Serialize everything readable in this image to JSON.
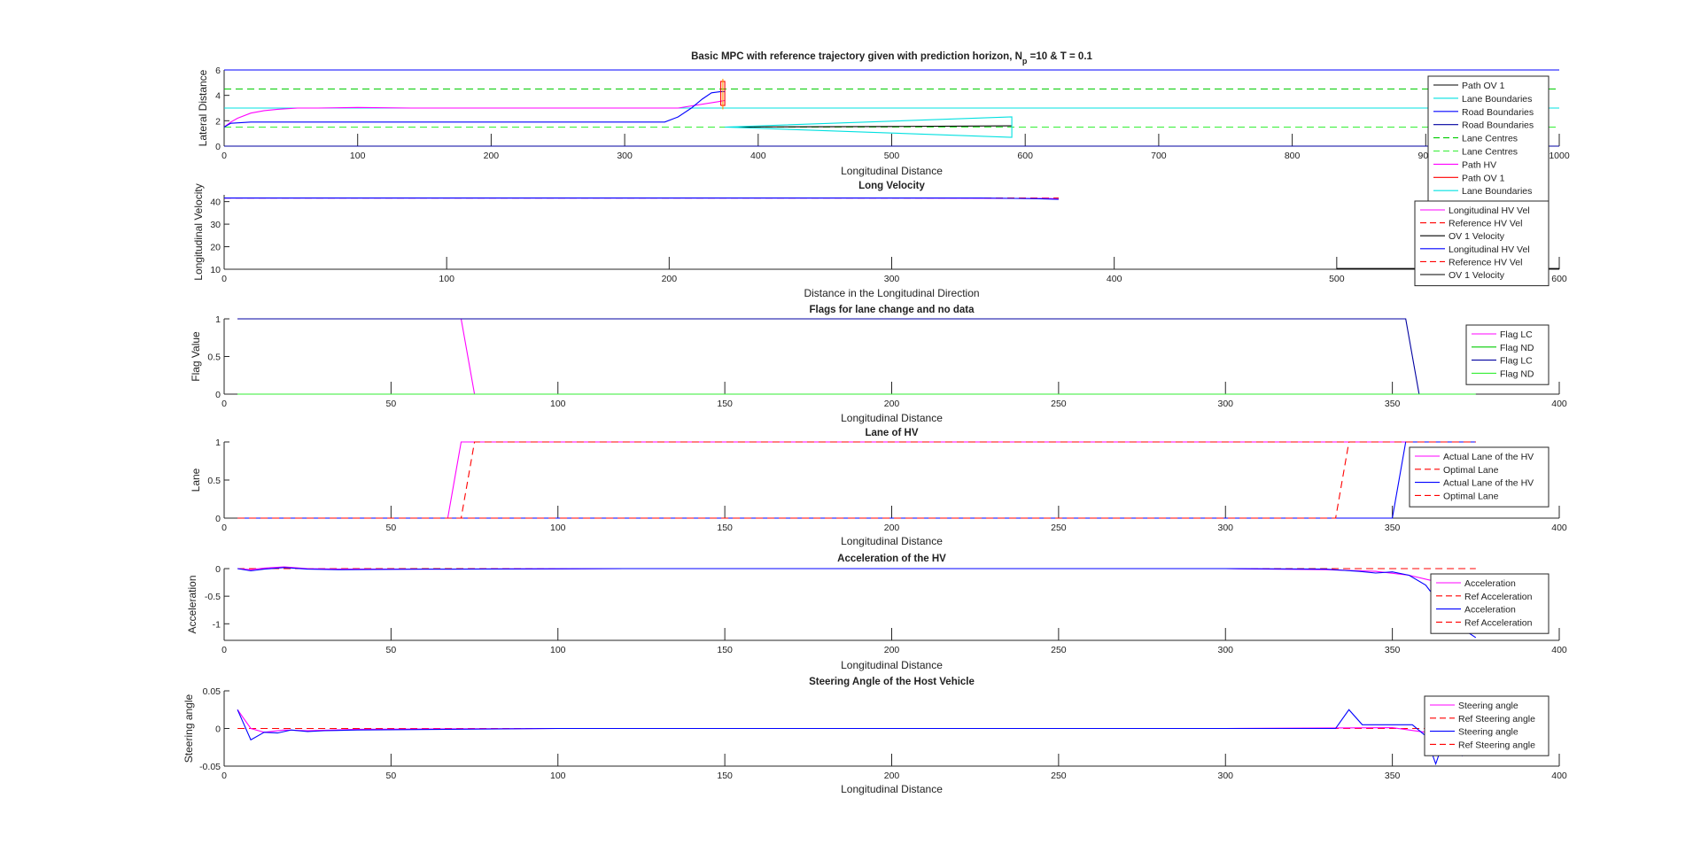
{
  "figure": {
    "background": "#ffffff",
    "colors": {
      "magenta": "#ff00ff",
      "red": "#ff0000",
      "black": "#000000",
      "blue": "#0000ff",
      "darkblue": "#0000a0",
      "cyan": "#00e0e0",
      "green": "#00cc00",
      "lightgreen": "#33ee33",
      "orange": "#ff9900"
    }
  },
  "chart_data": [
    {
      "type": "line",
      "title_main": "Basic MPC with reference trajectory given with prediction horizon, N",
      "title_sub": "p",
      "title_tail": " =10 & T = 0.1",
      "xlabel": "Longitudinal Distance",
      "ylabel": "Lateral Distance",
      "xlim": [
        0,
        1000
      ],
      "ylim": [
        0,
        6
      ],
      "xticks": [
        0,
        100,
        200,
        300,
        400,
        500,
        600,
        700,
        800,
        900,
        1000
      ],
      "yticks": [
        0,
        2,
        4,
        6
      ],
      "xtick_labels": [
        "0",
        "100",
        "200",
        "300",
        "400",
        "500",
        "600",
        "700",
        "800",
        "900",
        "1000"
      ],
      "ytick_labels": [
        "0",
        "2",
        "4",
        "6"
      ],
      "legend": [
        "Path OV 1",
        "Lane Boundaries",
        "Road Boundaries",
        "Road Boundaries",
        "Lane Centres",
        "Lane Centres",
        "Path HV",
        "Path OV 1",
        "Lane Boundaries"
      ],
      "legend_placement": "right",
      "series": [
        {
          "name": "Road Boundaries",
          "color": "blue",
          "x": [
            0,
            1000
          ],
          "y": [
            6,
            6
          ]
        },
        {
          "name": "Road Boundaries",
          "color": "darkblue",
          "x": [
            0,
            1000
          ],
          "y": [
            0,
            0
          ]
        },
        {
          "name": "Lane Boundaries",
          "color": "cyan",
          "x": [
            0,
            1000
          ],
          "y": [
            3,
            3
          ]
        },
        {
          "name": "Lane Centres",
          "color": "green",
          "dash": true,
          "x": [
            0,
            1000
          ],
          "y": [
            4.5,
            4.5
          ]
        },
        {
          "name": "Lane Centres",
          "color": "lightgreen",
          "dash": true,
          "x": [
            0,
            1000
          ],
          "y": [
            1.5,
            1.5
          ]
        },
        {
          "name": "Path HV",
          "color": "magenta",
          "x": [
            0,
            5,
            10,
            20,
            30,
            40,
            55,
            70,
            100,
            140,
            180,
            240,
            300,
            340,
            370,
            375
          ],
          "y": [
            1.5,
            1.9,
            2.2,
            2.6,
            2.8,
            2.9,
            3.0,
            3.0,
            3.05,
            3.0,
            3.0,
            3.0,
            3.0,
            3.0,
            3.5,
            3.6
          ]
        },
        {
          "name": "Path HV",
          "color": "blue",
          "x": [
            0,
            5,
            20,
            40,
            80,
            150,
            250,
            330,
            340,
            350,
            358,
            365,
            372,
            375
          ],
          "y": [
            1.5,
            1.8,
            1.9,
            1.9,
            1.9,
            1.9,
            1.9,
            1.9,
            2.3,
            3.0,
            3.7,
            4.2,
            4.3,
            4.3
          ]
        },
        {
          "name": "Path OV 1",
          "color": "black",
          "x": [
            375,
            500,
            590
          ],
          "y": [
            1.5,
            1.55,
            1.6
          ]
        },
        {
          "name": "Lane Boundaries",
          "color": "cyan",
          "x": [
            375,
            590,
            590,
            375
          ],
          "y": [
            1.5,
            2.3,
            0.7,
            1.5
          ]
        },
        {
          "name": "Path OV 1",
          "color": "red",
          "x": [
            372,
            372,
            375,
            375,
            372
          ],
          "y": [
            3.2,
            5.1,
            5.1,
            3.2,
            3.2
          ]
        },
        {
          "name": "Path OV 1",
          "color": "orange",
          "x": [
            373.5,
            373.5
          ],
          "y": [
            2.9,
            5.3
          ]
        }
      ]
    },
    {
      "type": "line",
      "title": "Long Velocity",
      "xlabel": "Distance in the Longitudinal Direction",
      "ylabel": "Longitudinal Velocity",
      "xlim": [
        0,
        600
      ],
      "ylim": [
        10,
        43
      ],
      "xticks": [
        0,
        100,
        200,
        300,
        400,
        500,
        600
      ],
      "yticks": [
        10,
        20,
        30,
        40
      ],
      "xtick_labels": [
        "0",
        "100",
        "200",
        "300",
        "400",
        "500",
        "600"
      ],
      "ytick_labels": [
        "10",
        "20",
        "30",
        "40"
      ],
      "legend": [
        "Longitudinal HV Vel",
        "Reference HV Vel",
        "OV 1 Velocity",
        "Longitudinal HV Vel",
        "Reference HV Vel",
        "OV 1 Velocity"
      ],
      "legend_placement": "right",
      "series": [
        {
          "name": "Reference HV Vel",
          "color": "red",
          "dash": true,
          "x": [
            0,
            375
          ],
          "y": [
            41.6,
            41.6
          ]
        },
        {
          "name": "Longitudinal HV Vel",
          "color": "magenta",
          "x": [
            0,
            300,
            370,
            375
          ],
          "y": [
            41.6,
            41.6,
            41.4,
            41.2
          ]
        },
        {
          "name": "Longitudinal HV Vel",
          "color": "blue",
          "x": [
            0,
            340,
            365,
            375
          ],
          "y": [
            41.6,
            41.6,
            41.3,
            41.0
          ]
        },
        {
          "name": "OV 1 Velocity",
          "color": "black",
          "x": [
            500,
            600
          ],
          "y": [
            10.3,
            10.3
          ]
        }
      ]
    },
    {
      "type": "line",
      "title": "Flags for lane change and no data",
      "xlabel": "Longitudinal Distance",
      "ylabel": "Flag Value",
      "xlim": [
        0,
        400
      ],
      "ylim": [
        0,
        1
      ],
      "xticks": [
        0,
        50,
        100,
        150,
        200,
        250,
        300,
        350,
        400
      ],
      "yticks": [
        0,
        0.5,
        1
      ],
      "xtick_labels": [
        "0",
        "50",
        "100",
        "150",
        "200",
        "250",
        "300",
        "350",
        "400"
      ],
      "ytick_labels": [
        "0",
        "0.5",
        "1"
      ],
      "legend": [
        "Flag LC",
        "Flag ND",
        "Flag LC",
        "Flag ND"
      ],
      "legend_placement": "top-right",
      "series": [
        {
          "name": "Flag LC",
          "color": "magenta",
          "x": [
            4,
            71,
            75,
            375
          ],
          "y": [
            1,
            1,
            0,
            0
          ]
        },
        {
          "name": "Flag ND",
          "color": "green",
          "x": [
            4,
            375
          ],
          "y": [
            0,
            0
          ]
        },
        {
          "name": "Flag LC",
          "color": "darkblue",
          "x": [
            4,
            354,
            358,
            375
          ],
          "y": [
            1,
            1,
            0,
            0
          ]
        },
        {
          "name": "Flag ND",
          "color": "lightgreen",
          "x": [
            4,
            375
          ],
          "y": [
            0,
            0
          ]
        }
      ]
    },
    {
      "type": "line",
      "title": "Lane of HV",
      "xlabel": "Longitudinal Distance",
      "ylabel": "Lane",
      "xlim": [
        0,
        400
      ],
      "ylim": [
        0,
        1
      ],
      "xticks": [
        0,
        50,
        100,
        150,
        200,
        250,
        300,
        350,
        400
      ],
      "yticks": [
        0,
        0.5,
        1
      ],
      "xtick_labels": [
        "0",
        "50",
        "100",
        "150",
        "200",
        "250",
        "300",
        "350",
        "400"
      ],
      "ytick_labels": [
        "0",
        "0.5",
        "1"
      ],
      "legend": [
        "Actual Lane of the HV",
        "Optimal Lane",
        "Actual Lane of the HV",
        "Optimal Lane"
      ],
      "legend_placement": "top-right",
      "series": [
        {
          "name": "Actual Lane of the HV",
          "color": "magenta",
          "x": [
            4,
            67,
            71,
            375
          ],
          "y": [
            0,
            0,
            1,
            1
          ]
        },
        {
          "name": "Optimal Lane",
          "color": "red",
          "dash": true,
          "x": [
            4,
            71,
            75,
            375
          ],
          "y": [
            0,
            0,
            1,
            1
          ]
        },
        {
          "name": "Actual Lane of the HV",
          "color": "blue",
          "x": [
            4,
            350,
            354,
            375
          ],
          "y": [
            0,
            0,
            1,
            1
          ]
        },
        {
          "name": "Optimal Lane",
          "color": "red",
          "dash": true,
          "x": [
            4,
            333,
            337,
            375
          ],
          "y": [
            0,
            0,
            1,
            1
          ]
        }
      ]
    },
    {
      "type": "line",
      "title": "Acceleration of the HV",
      "xlabel": "Longitudinal Distance",
      "ylabel": "Acceleration",
      "xlim": [
        0,
        400
      ],
      "ylim": [
        -1.3,
        0
      ],
      "xticks": [
        0,
        50,
        100,
        150,
        200,
        250,
        300,
        350,
        400
      ],
      "yticks": [
        -1,
        -0.5,
        0
      ],
      "xtick_labels": [
        "0",
        "50",
        "100",
        "150",
        "200",
        "250",
        "300",
        "350",
        "400"
      ],
      "ytick_labels": [
        "-1",
        "-0.5",
        "0"
      ],
      "legend": [
        "Acceleration",
        "Ref Acceleration",
        "Acceleration",
        "Ref Acceleration"
      ],
      "legend_placement": "right",
      "series": [
        {
          "name": "Ref Acceleration",
          "color": "red",
          "dash": true,
          "x": [
            4,
            375
          ],
          "y": [
            0,
            0
          ]
        },
        {
          "name": "Acceleration",
          "color": "magenta",
          "x": [
            4,
            8,
            12,
            18,
            25,
            35,
            60,
            120,
            200,
            300,
            330,
            345,
            355,
            362,
            368,
            372,
            375
          ],
          "y": [
            0,
            -0.02,
            0.01,
            0.03,
            0.0,
            -0.01,
            -0.01,
            0,
            0,
            0,
            -0.02,
            -0.05,
            -0.12,
            -0.22,
            -0.38,
            -0.48,
            -0.52
          ]
        },
        {
          "name": "Acceleration",
          "color": "blue",
          "x": [
            4,
            8,
            12,
            18,
            25,
            35,
            60,
            120,
            200,
            300,
            330,
            340,
            345,
            350,
            355,
            360,
            365,
            370,
            375
          ],
          "y": [
            0,
            -0.04,
            -0.01,
            0.02,
            -0.01,
            -0.02,
            -0.01,
            0,
            0,
            0,
            -0.01,
            -0.05,
            -0.08,
            -0.06,
            -0.12,
            -0.3,
            -0.7,
            -1.05,
            -1.25
          ]
        }
      ]
    },
    {
      "type": "line",
      "title": "Steering Angle of the Host Vehicle",
      "xlabel": "Longitudinal Distance",
      "ylabel": "Steering angle",
      "xlim": [
        0,
        400
      ],
      "ylim": [
        -0.05,
        0.05
      ],
      "xticks": [
        0,
        50,
        100,
        150,
        200,
        250,
        300,
        350,
        400
      ],
      "yticks": [
        -0.05,
        0,
        0.05
      ],
      "xtick_labels": [
        "0",
        "50",
        "100",
        "150",
        "200",
        "250",
        "300",
        "350",
        "400"
      ],
      "ytick_labels": [
        "-0.05",
        "0",
        "0.05"
      ],
      "legend": [
        "Steering angle",
        "Ref Steering angle",
        "Steering angle",
        "Ref Steering angle"
      ],
      "legend_placement": "right",
      "series": [
        {
          "name": "Ref Steering angle",
          "color": "red",
          "dash": true,
          "x": [
            4,
            375
          ],
          "y": [
            0,
            0
          ]
        },
        {
          "name": "Steering angle",
          "color": "magenta",
          "x": [
            4,
            8,
            12,
            18,
            25,
            40,
            100,
            200,
            300,
            350,
            360,
            375
          ],
          "y": [
            0.025,
            0.0,
            -0.005,
            -0.002,
            -0.003,
            -0.001,
            0,
            0,
            0,
            0.001,
            -0.005,
            -0.01
          ]
        },
        {
          "name": "Steering angle",
          "color": "blue",
          "x": [
            4,
            8,
            12,
            16,
            20,
            25,
            30,
            40,
            100,
            200,
            300,
            333,
            337,
            341,
            350,
            356,
            360,
            363,
            367,
            371,
            375
          ],
          "y": [
            0.025,
            -0.015,
            -0.005,
            -0.006,
            -0.002,
            -0.004,
            -0.003,
            -0.002,
            0,
            0,
            0,
            0,
            0.025,
            0.005,
            0.005,
            0.005,
            -0.01,
            -0.047,
            0.005,
            -0.036,
            -0.01
          ]
        }
      ]
    }
  ]
}
